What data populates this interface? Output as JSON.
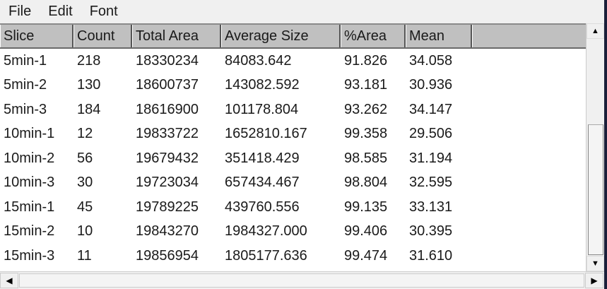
{
  "menu": [
    "File",
    "Edit",
    "Font"
  ],
  "columns": [
    "Slice",
    "Count",
    "Total Area",
    "Average Size",
    "%Area",
    "Mean"
  ],
  "rows": [
    [
      "5min-1",
      "218",
      "18330234",
      "84083.642",
      "91.826",
      "34.058"
    ],
    [
      "5min-2",
      "130",
      "18600737",
      "143082.592",
      "93.181",
      "30.936"
    ],
    [
      "5min-3",
      "184",
      "18616900",
      "101178.804",
      "93.262",
      "34.147"
    ],
    [
      "10min-1",
      "12",
      "19833722",
      "1652810.167",
      "99.358",
      "29.506"
    ],
    [
      "10min-2",
      "56",
      "19679432",
      "351418.429",
      "98.585",
      "31.194"
    ],
    [
      "10min-3",
      "30",
      "19723034",
      "657434.467",
      "98.804",
      "32.595"
    ],
    [
      "15min-1",
      "45",
      "19789225",
      "439760.556",
      "99.135",
      "33.131"
    ],
    [
      "15min-2",
      "10",
      "19843270",
      "1984327.000",
      "99.406",
      "30.395"
    ],
    [
      "15min-3",
      "11",
      "19856954",
      "1805177.636",
      "99.474",
      "31.610"
    ]
  ],
  "icons": {
    "up": "arrow-up-icon",
    "down": "arrow-down-icon",
    "left": "arrow-left-icon",
    "right": "arrow-right-icon"
  },
  "scroll": {
    "vertical_position": "bottom"
  }
}
